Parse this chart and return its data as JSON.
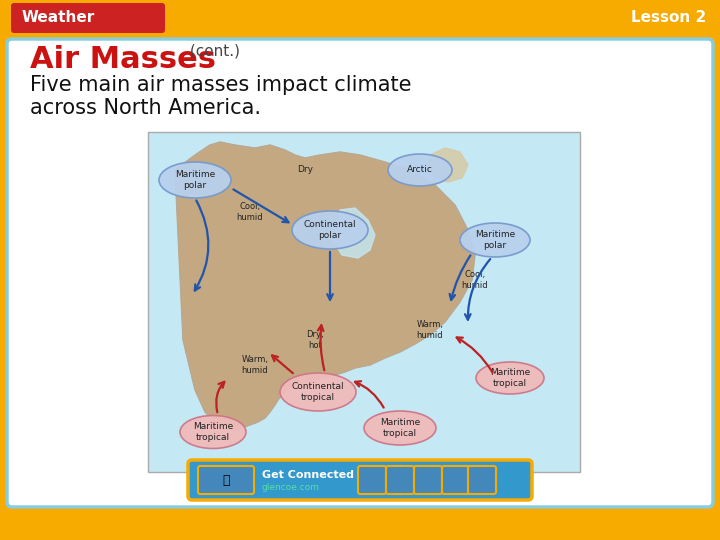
{
  "bg_outer": "#F7AA00",
  "bg_inner": "#FFFFFF",
  "header_bg": "#CC2222",
  "header_text": "Weather",
  "header_text_color": "#FFFFFF",
  "lesson_text": "Lesson 2",
  "lesson_text_color": "#FFFFFF",
  "title_main": "Air Masses",
  "title_cont": " (cont.)",
  "title_color": "#CC1111",
  "title_cont_color": "#444444",
  "body_text_line1": "Five main air masses impact climate",
  "body_text_line2": "across North America.",
  "body_text_color": "#111111",
  "footer_bg": "#3399CC",
  "footer_text": "Get Connected",
  "footer_subtext": "glencoe.com",
  "inner_border_color": "#88CCDD",
  "figsize": [
    7.2,
    5.4
  ],
  "dpi": 100,
  "blue_ellipse_face": "#B8D0EC",
  "blue_ellipse_edge": "#7799CC",
  "pink_ellipse_face": "#F0BBBB",
  "pink_ellipse_edge": "#CC7788",
  "arrow_blue": "#2255AA",
  "arrow_red": "#BB2222"
}
